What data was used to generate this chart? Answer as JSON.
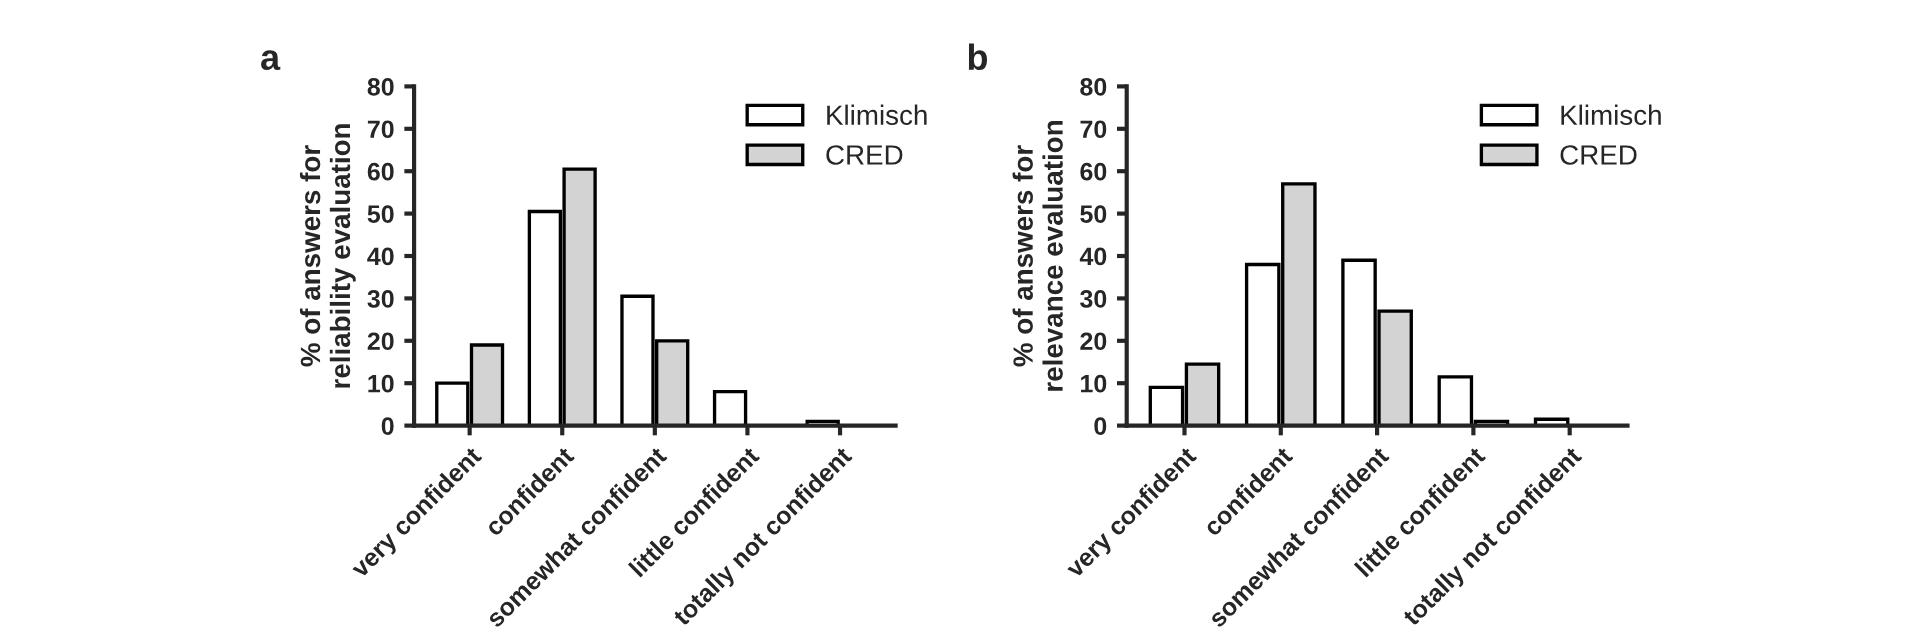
{
  "chart_data": [
    {
      "type": "bar",
      "title": "a",
      "ylabel": "% of answers for\nreliability evaluation",
      "categories": [
        "very confident",
        "confident",
        "somewhat confident",
        "little confident",
        "totally not confident"
      ],
      "series": [
        {
          "name": "Klimisch",
          "color": "#ffffff",
          "values": [
            10,
            50.5,
            30.5,
            8,
            1
          ]
        },
        {
          "name": "CRED",
          "color": "#d3d3d3",
          "values": [
            19,
            60.5,
            20,
            0,
            0
          ]
        }
      ],
      "ylim": [
        0,
        80
      ],
      "yticks": [
        0,
        10,
        20,
        30,
        40,
        50,
        60,
        70,
        80
      ],
      "legend": "top right",
      "grid": false
    },
    {
      "type": "bar",
      "title": "b",
      "ylabel": "% of answers for\nrelevance evaluation",
      "categories": [
        "very confident",
        "confident",
        "somewhat confident",
        "little confident",
        "totally not confident"
      ],
      "series": [
        {
          "name": "Klimisch",
          "color": "#ffffff",
          "values": [
            9,
            38,
            39,
            11.5,
            1.5
          ]
        },
        {
          "name": "CRED",
          "color": "#d3d3d3",
          "values": [
            14.5,
            57,
            27,
            1,
            0
          ]
        }
      ],
      "ylim": [
        0,
        80
      ],
      "yticks": [
        0,
        10,
        20,
        30,
        40,
        50,
        60,
        70,
        80
      ],
      "legend": "top right",
      "grid": false
    }
  ]
}
